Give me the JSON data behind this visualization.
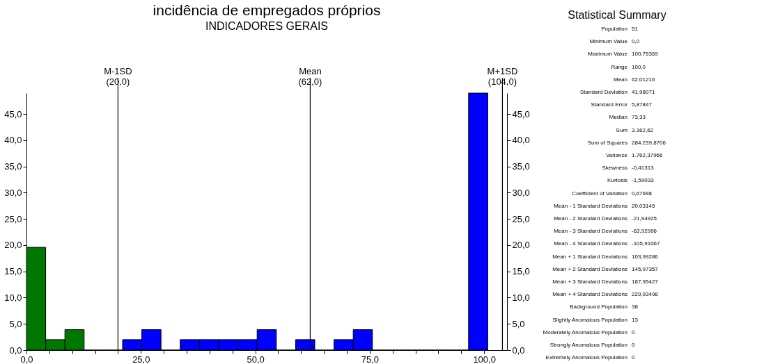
{
  "chart_data": [
    {
      "type": "histogram",
      "title": "incidência de  empregados próprios",
      "subtitle": "INDICADORES GERAIS",
      "bins": [
        0,
        4.2,
        8.4,
        12.6,
        16.8,
        21.0,
        25.2,
        29.4,
        33.6,
        37.8,
        42.0,
        46.2,
        50.4,
        54.6,
        58.8,
        63.0,
        67.2,
        71.4,
        75.6,
        79.8,
        84.0,
        88.2,
        92.4,
        96.6,
        100.8
      ],
      "values": [
        19.6,
        2.0,
        3.9,
        0,
        0,
        2.0,
        3.9,
        0,
        2.0,
        2.0,
        2.0,
        2.0,
        3.9,
        0,
        2.0,
        0,
        2.0,
        3.9,
        0,
        0,
        0,
        0,
        0,
        49.0
      ],
      "colors": [
        "#007700",
        "#007700",
        "#007700",
        "#007700",
        "#007700",
        "#0000ff",
        "#0000ff",
        "#0000ff",
        "#0000ff",
        "#0000ff",
        "#0000ff",
        "#0000ff",
        "#0000ff",
        "#0000ff",
        "#0000ff",
        "#0000ff",
        "#0000ff",
        "#0000ff",
        "#0000ff",
        "#0000ff",
        "#0000ff",
        "#0000ff",
        "#0000ff",
        "#0000ff"
      ],
      "xlim": [
        0,
        105
      ],
      "ylim": [
        0,
        49
      ],
      "y2lim": [
        0,
        49
      ],
      "xticks": [
        {
          "value": 0,
          "label": "0,0"
        },
        {
          "value": 5,
          "label": null
        },
        {
          "value": 10,
          "label": null
        },
        {
          "value": 15,
          "label": null
        },
        {
          "value": 20,
          "label": null
        },
        {
          "value": 25,
          "label": "25,0"
        },
        {
          "value": 30,
          "label": null
        },
        {
          "value": 35,
          "label": null
        },
        {
          "value": 40,
          "label": null
        },
        {
          "value": 45,
          "label": null
        },
        {
          "value": 50,
          "label": "50,0"
        },
        {
          "value": 55,
          "label": null
        },
        {
          "value": 60,
          "label": null
        },
        {
          "value": 65,
          "label": null
        },
        {
          "value": 70,
          "label": null
        },
        {
          "value": 75,
          "label": "75,0"
        },
        {
          "value": 80,
          "label": null
        },
        {
          "value": 85,
          "label": null
        },
        {
          "value": 90,
          "label": null
        },
        {
          "value": 95,
          "label": null
        },
        {
          "value": 100,
          "label": "100,0"
        }
      ],
      "yticks": [
        {
          "value": 0,
          "label": "0,0"
        },
        {
          "value": 5,
          "label": "5,0"
        },
        {
          "value": 10,
          "label": "10,0"
        },
        {
          "value": 15,
          "label": "15,0"
        },
        {
          "value": 20,
          "label": "20,0"
        },
        {
          "value": 25,
          "label": "25,0"
        },
        {
          "value": 30,
          "label": "30,0"
        },
        {
          "value": 35,
          "label": "35,0"
        },
        {
          "value": 40,
          "label": "40,0"
        },
        {
          "value": 45,
          "label": "45,0"
        }
      ],
      "y2ticks": [
        {
          "value": 0,
          "label": "0,0"
        },
        {
          "value": 5,
          "label": "5,0"
        },
        {
          "value": 10,
          "label": "10,0"
        },
        {
          "value": 15,
          "label": "15,0"
        },
        {
          "value": 20,
          "label": "20,0"
        },
        {
          "value": 25,
          "label": "25,0"
        },
        {
          "value": 30,
          "label": "30,0"
        },
        {
          "value": 35,
          "label": "35,0"
        },
        {
          "value": 40,
          "label": "40,0"
        },
        {
          "value": 45,
          "label": "45,0"
        }
      ],
      "ref_lines": [
        {
          "axis": "x",
          "value": 20.0,
          "label": "M-1SD\n\n(20,0)",
          "color": "#000000"
        },
        {
          "axis": "x",
          "value": 62.0,
          "label": "Mean\n\n(62,0)",
          "color": "#000000"
        },
        {
          "axis": "x",
          "value": 104.0,
          "label": "M+1SD\n\n(104,0)",
          "color": "#000000"
        }
      ],
      "grid": false
    },
    {
      "type": "other",
      "title": "Statistical Summary",
      "annotations": [
        "Population 51",
        "Minimum Value 0,0",
        "Maximum Value 100,75369",
        "Range 100,0",
        "Mean 62,01216",
        "Standard Deviation 41,98071",
        "Standard Error 5,87847",
        "Median 73,33",
        "Sum 3.162,62",
        "Sum of Squares 284.239,8706",
        "Variance 1.762,37966",
        "Skewness -0,41313",
        "Kurtosis -1,59033",
        "Coefficient of Variation 0,67698",
        "Mean - 1 Standard Deviations 20,03145",
        "Mean - 2 Standard Deviations -21,94925",
        "Mean - 3 Standard Deviations -63,92996",
        "Mean - 4 Standard Deviations -105,91067",
        "Mean + 1 Standard Deviations 103,99286",
        "Mean + 2 Standard Deviations 145,97357",
        "Mean + 3 Standard Deviations 187,95427",
        "Mean + 4 Standard Deviations 229,93498",
        "Background Population 38",
        "Slightly Anomalous Population 13",
        "Moderately Anomalous Population 0",
        "Strongly Anomalous Population 0",
        "Extremely Anomalous Population 0"
      ]
    }
  ]
}
